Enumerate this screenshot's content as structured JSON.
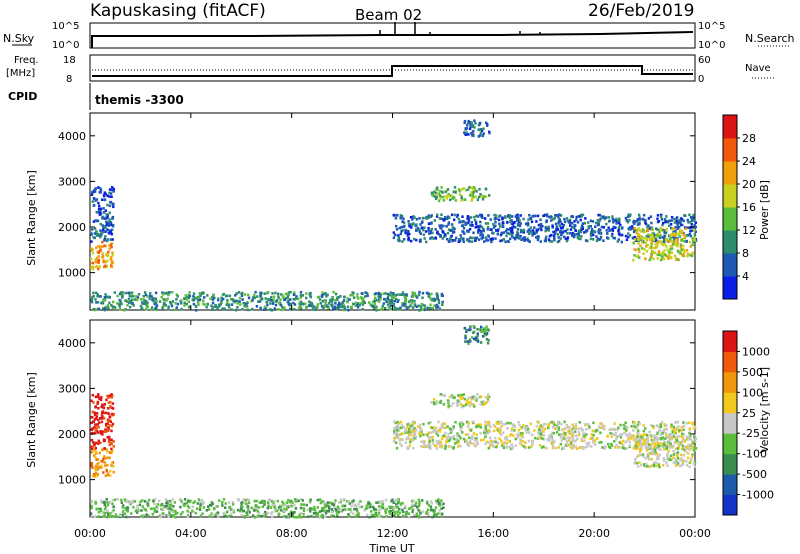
{
  "header": {
    "station": "Kapuskasing (fitACF)",
    "beam": "Beam 02",
    "date": "26/Feb/2019"
  },
  "strip_labels": {
    "nsky": "N.Sky",
    "nsky_ticks": [
      "10^5",
      "10^0"
    ],
    "nsearch": "N.Search",
    "nsearch_ticks": [
      "10^5",
      "10^0"
    ],
    "freq": "Freq.",
    "freq_unit": "[MHz]",
    "freq_ticks": [
      "18",
      "8"
    ],
    "nave": "Nave",
    "nave_ticks": [
      "60",
      "0"
    ],
    "cpid": "CPID",
    "cpid_value": "themis -3300"
  },
  "chart_data": [
    {
      "type": "heatmap",
      "ylabel": "Slant Range [km]",
      "xlabel": "",
      "ylim": [
        180,
        4500
      ],
      "yticks": [
        "1000",
        "2000",
        "3000",
        "4000"
      ],
      "colorbar": {
        "label": "Power [dB]",
        "ticks": [
          "4",
          "8",
          "12",
          "16",
          "20",
          "24",
          "28"
        ],
        "colors": [
          "#0a1ee6",
          "#1e5ab4",
          "#2d8c6e",
          "#5abe3c",
          "#c8d21e",
          "#f0a00a",
          "#f05a0a",
          "#dc1414"
        ]
      },
      "regions": [
        {
          "t0": 0.0,
          "t1": 0.9,
          "r0": 1100,
          "r1": 1700,
          "level": 5
        },
        {
          "t0": 0.0,
          "t1": 0.9,
          "r0": 1700,
          "r1": 2900,
          "level": 1
        },
        {
          "t0": 0.0,
          "t1": 14.0,
          "r0": 200,
          "r1": 600,
          "level": 2
        },
        {
          "t0": 12.0,
          "t1": 24.0,
          "r0": 1700,
          "r1": 2300,
          "level": 1
        },
        {
          "t0": 13.5,
          "t1": 15.8,
          "r0": 2600,
          "r1": 2900,
          "level": 3
        },
        {
          "t0": 14.8,
          "t1": 15.8,
          "r0": 4000,
          "r1": 4400,
          "level": 1
        },
        {
          "t0": 21.5,
          "t1": 24.0,
          "r0": 1300,
          "r1": 2000,
          "level": 4
        }
      ]
    },
    {
      "type": "heatmap",
      "ylabel": "Slant Range [km]",
      "xlabel": "Time UT",
      "ylim": [
        180,
        4500
      ],
      "yticks": [
        "1000",
        "2000",
        "3000",
        "4000"
      ],
      "xticks": [
        "00:00",
        "04:00",
        "08:00",
        "12:00",
        "16:00",
        "20:00",
        "00:00"
      ],
      "xlim": [
        0,
        24
      ],
      "colorbar": {
        "label": "Velocity [m s-1]",
        "ticks": [
          "1000",
          "500",
          "100",
          "25",
          "-25",
          "-100",
          "-500",
          "-1000"
        ],
        "colors": [
          "#1432c8",
          "#1e5aaa",
          "#3c8c50",
          "#5abe3c",
          "#c8c8c8",
          "#f0c81e",
          "#f0960a",
          "#f05a0a",
          "#dc1414"
        ]
      },
      "regions": [
        {
          "t0": 0.0,
          "t1": 0.9,
          "r0": 1100,
          "r1": 1700,
          "level": 6
        },
        {
          "t0": 0.0,
          "t1": 0.9,
          "r0": 1700,
          "r1": 2900,
          "level": 8
        },
        {
          "t0": 0.0,
          "t1": 14.0,
          "r0": 200,
          "r1": 600,
          "level": 3
        },
        {
          "t0": 12.0,
          "t1": 24.0,
          "r0": 1700,
          "r1": 2300,
          "level": 4
        },
        {
          "t0": 13.5,
          "t1": 15.8,
          "r0": 2600,
          "r1": 2900,
          "level": 4
        },
        {
          "t0": 14.8,
          "t1": 15.8,
          "r0": 4000,
          "r1": 4400,
          "level": 2
        },
        {
          "t0": 21.5,
          "t1": 24.0,
          "r0": 1300,
          "r1": 2000,
          "level": 4
        }
      ]
    }
  ]
}
